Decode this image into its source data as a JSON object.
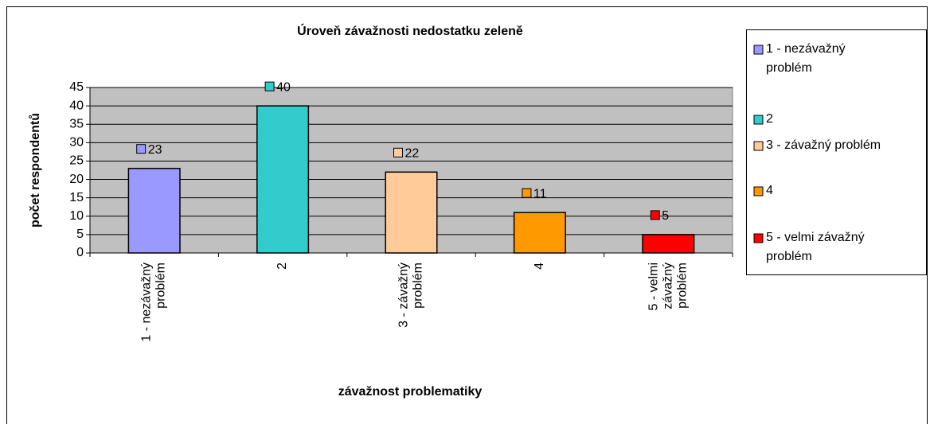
{
  "chart_data": {
    "type": "bar",
    "title": "Úroveň závažnosti nedostatku zeleně",
    "x_label": "závažnost problematiky",
    "y_label": "počet respondentů",
    "categories": [
      "1 - nezávažný problém",
      "2",
      "3 - závažný problém",
      "4",
      "5 - velmi závažný problém"
    ],
    "values": [
      23,
      40,
      22,
      11,
      5
    ],
    "colors": [
      "#9999ff",
      "#33cccc",
      "#ffcc99",
      "#ff9900",
      "#ff0000"
    ],
    "ylim": [
      0,
      45
    ],
    "yticks": [
      0,
      5,
      10,
      15,
      20,
      25,
      30,
      35,
      40,
      45
    ],
    "grid": true,
    "legend": "right"
  }
}
